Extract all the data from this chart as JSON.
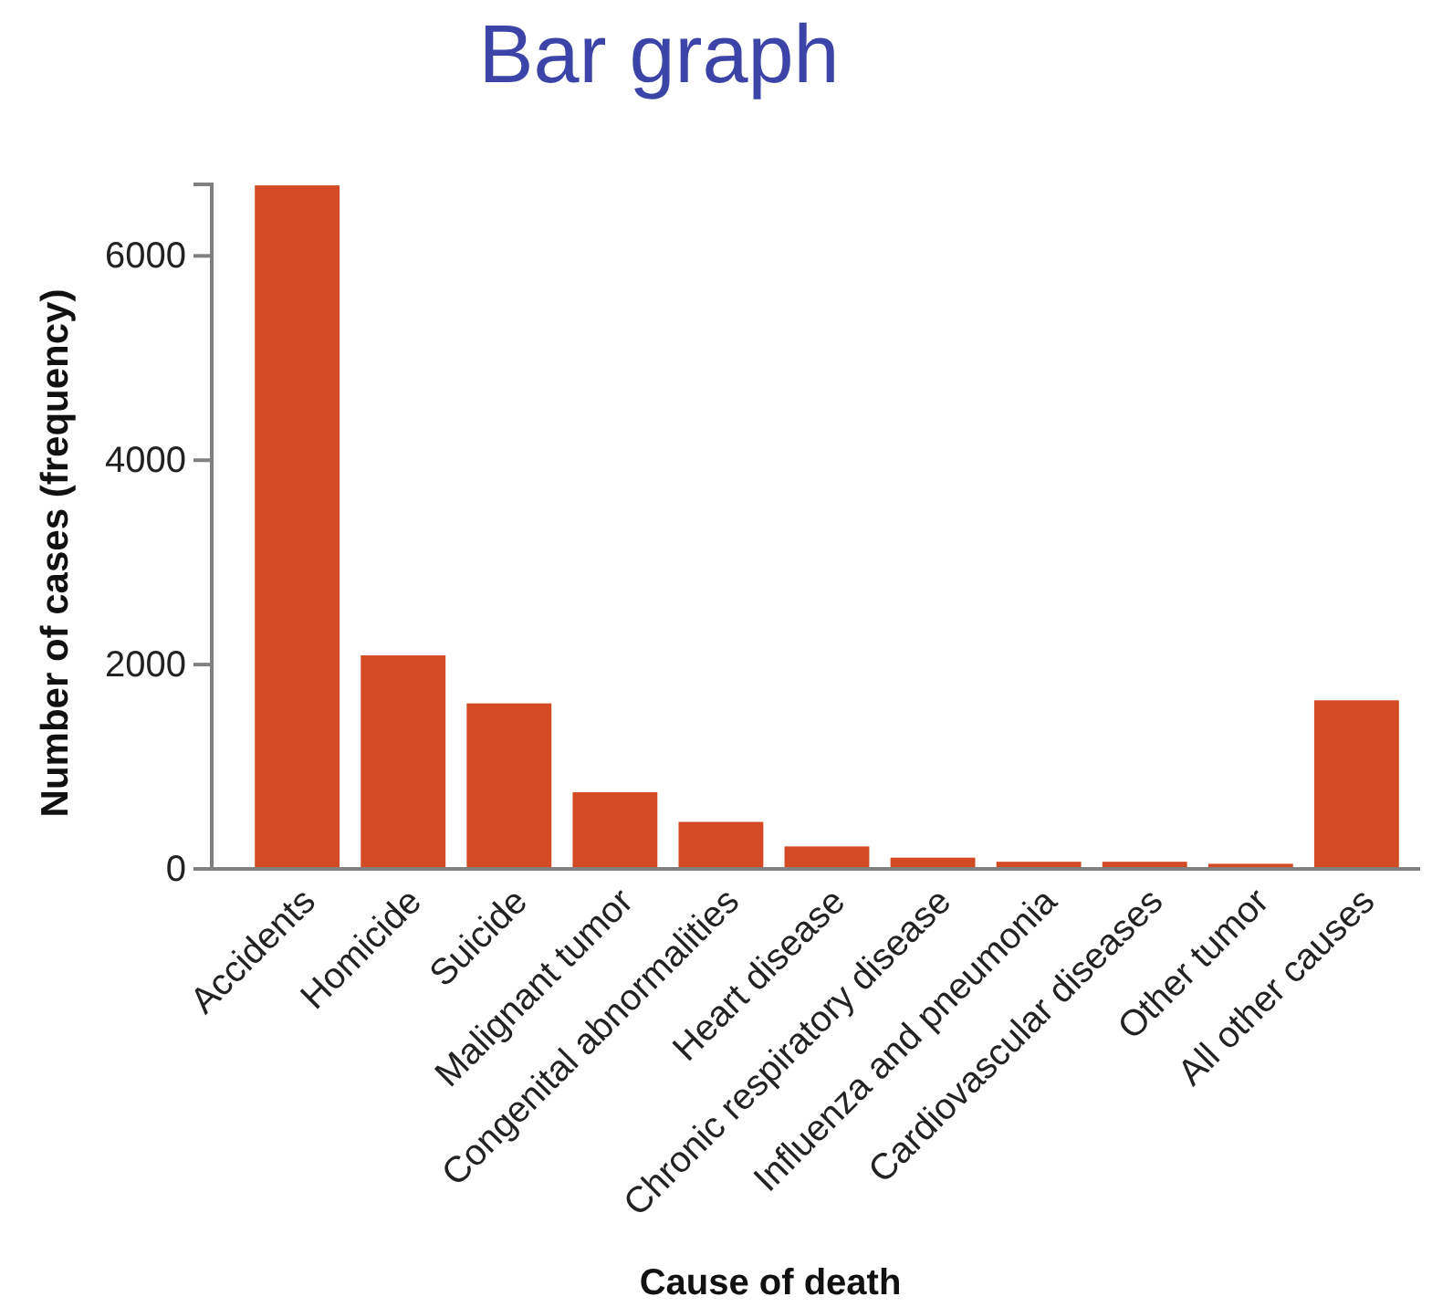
{
  "chart_data": {
    "type": "bar",
    "title": "Bar graph",
    "xlabel": "Cause of death",
    "ylabel": "Number of cases (frequency)",
    "categories": [
      "Accidents",
      "Homicide",
      "Suicide",
      "Malignant tumor",
      "Congenital abnormalities",
      "Heart disease",
      "Chronic respiratory disease",
      "Influenza and pneumonia",
      "Cardiovascular diseases",
      "Other tumor",
      "All other causes"
    ],
    "values": [
      6690,
      2090,
      1620,
      750,
      460,
      220,
      110,
      70,
      70,
      50,
      1650
    ],
    "color": "#d34a24",
    "ylim": [
      0,
      6700
    ],
    "yticks": [
      0,
      2000,
      4000,
      6000
    ]
  }
}
